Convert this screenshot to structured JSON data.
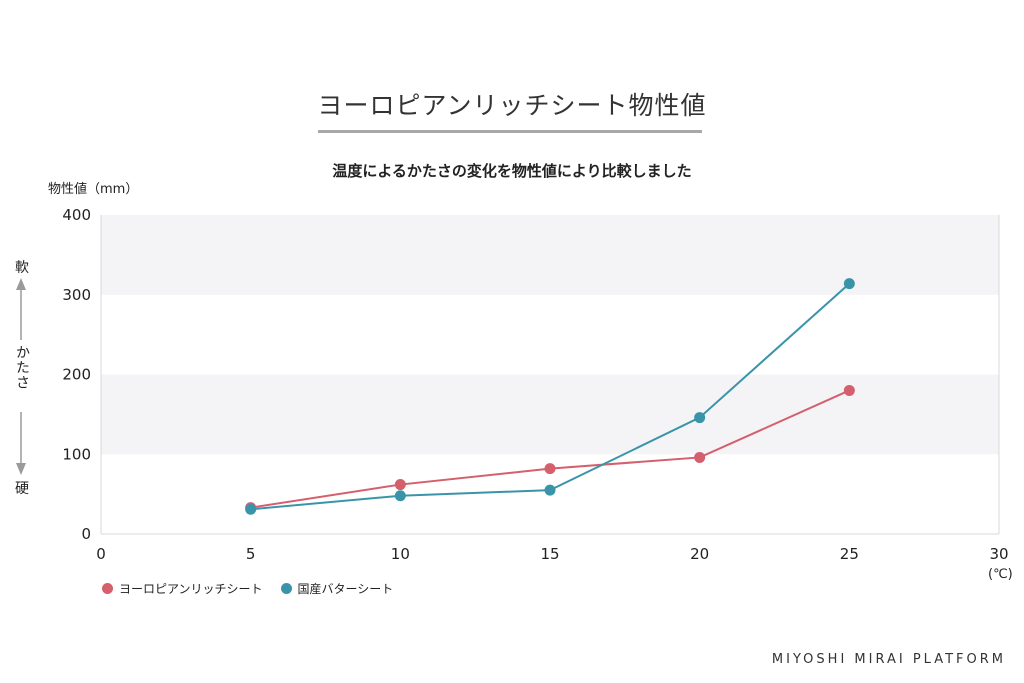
{
  "title": "ヨーロピアンリッチシート物性値",
  "subtitle": "温度によるかたさの変化を物性値により比較しました",
  "y_axis_unit": "物性値（mm）",
  "x_axis_unit": "(℃)",
  "side_labels": {
    "top": "軟",
    "middle": "かたさ",
    "bottom": "硬"
  },
  "brand": "MIYOSHI MIRAI PLATFORM",
  "colors": {
    "european": "#d45f6d",
    "domestic": "#3a94a9",
    "band": "#f4f4f7",
    "axis": "#d9d9de"
  },
  "chart_data": {
    "type": "line",
    "title": "温度によるかたさの変化を物性値により比較しました",
    "xlabel": "(℃)",
    "ylabel": "物性値（mm）",
    "xlim": [
      0,
      30
    ],
    "ylim": [
      0,
      400
    ],
    "x_ticks": [
      0,
      5,
      10,
      15,
      20,
      25,
      30
    ],
    "y_ticks": [
      0,
      100,
      200,
      300,
      400
    ],
    "grid": "alternating horizontal bands",
    "legend": "bottom-left",
    "x": [
      5,
      10,
      15,
      20,
      25
    ],
    "series": [
      {
        "name": "ヨーロピアンリッチシート",
        "color": "#d45f6d",
        "values": [
          33,
          62,
          82,
          96,
          180
        ]
      },
      {
        "name": "国産バターシート",
        "color": "#3a94a9",
        "values": [
          31,
          48,
          55,
          146,
          314
        ]
      }
    ]
  }
}
